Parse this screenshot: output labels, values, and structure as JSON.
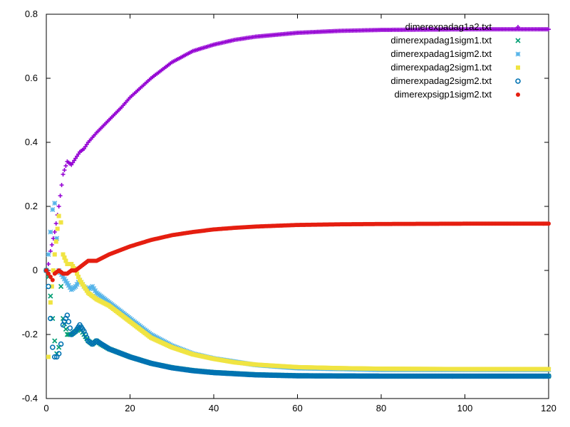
{
  "chart_data": {
    "type": "scatter",
    "title": "",
    "xlabel": "",
    "ylabel": "",
    "xlim": [
      0,
      120
    ],
    "ylim": [
      -0.4,
      0.8
    ],
    "xticks": [
      "0",
      "20",
      "40",
      "60",
      "80",
      "100",
      "120"
    ],
    "yticks": [
      "-0.4",
      "-0.2",
      "0",
      "0.2",
      "0.4",
      "0.6",
      "0.8"
    ],
    "grid": false,
    "legend_position": "top-right",
    "series": [
      {
        "name": "dimerexpadag1a2.txt",
        "marker": "plus",
        "color": "#9400d3",
        "points": [
          [
            0,
            0
          ],
          [
            0.5,
            0.02
          ],
          [
            1,
            0.06
          ],
          [
            2,
            0.12
          ],
          [
            3,
            0.2
          ],
          [
            4,
            0.3
          ],
          [
            5,
            0.34
          ],
          [
            6,
            0.33
          ],
          [
            7,
            0.35
          ],
          [
            8,
            0.37
          ],
          [
            9,
            0.38
          ],
          [
            10,
            0.4
          ],
          [
            12,
            0.43
          ],
          [
            15,
            0.47
          ],
          [
            18,
            0.51
          ],
          [
            20,
            0.54
          ],
          [
            25,
            0.6
          ],
          [
            30,
            0.65
          ],
          [
            35,
            0.685
          ],
          [
            40,
            0.705
          ],
          [
            45,
            0.72
          ],
          [
            50,
            0.73
          ],
          [
            60,
            0.742
          ],
          [
            70,
            0.748
          ],
          [
            80,
            0.751
          ],
          [
            90,
            0.752
          ],
          [
            100,
            0.753
          ],
          [
            110,
            0.753
          ],
          [
            120,
            0.753
          ]
        ]
      },
      {
        "name": "dimerexpadag1sigm1.txt",
        "marker": "cross",
        "color": "#009e73",
        "points": [
          [
            0,
            0
          ],
          [
            0.5,
            -0.02
          ],
          [
            1,
            -0.08
          ],
          [
            1.5,
            -0.15
          ],
          [
            2,
            -0.22
          ],
          [
            2.5,
            -0.26
          ],
          [
            3,
            -0.24
          ],
          [
            3.5,
            -0.05
          ],
          [
            4,
            -0.15
          ],
          [
            5,
            -0.2
          ],
          [
            6,
            -0.2
          ],
          [
            7,
            -0.19
          ],
          [
            8,
            -0.18
          ],
          [
            9,
            -0.2
          ],
          [
            10,
            -0.22
          ],
          [
            11,
            -0.23
          ],
          [
            12,
            -0.22
          ],
          [
            13,
            -0.23
          ],
          [
            15,
            -0.245
          ],
          [
            18,
            -0.26
          ],
          [
            20,
            -0.27
          ],
          [
            25,
            -0.29
          ],
          [
            30,
            -0.303
          ],
          [
            35,
            -0.312
          ],
          [
            40,
            -0.318
          ],
          [
            50,
            -0.325
          ],
          [
            60,
            -0.328
          ],
          [
            80,
            -0.33
          ],
          [
            100,
            -0.33
          ],
          [
            120,
            -0.33
          ]
        ]
      },
      {
        "name": "dimerexpadag1sigm2.txt",
        "marker": "star",
        "color": "#56b4e9",
        "points": [
          [
            0,
            0
          ],
          [
            0.5,
            0.05
          ],
          [
            1,
            0.12
          ],
          [
            1.5,
            0.19
          ],
          [
            2,
            0.21
          ],
          [
            2.5,
            0.1
          ],
          [
            3,
            0.0
          ],
          [
            4,
            -0.02
          ],
          [
            5,
            -0.04
          ],
          [
            6,
            -0.06
          ],
          [
            7,
            -0.05
          ],
          [
            8,
            -0.03
          ],
          [
            9,
            -0.05
          ],
          [
            10,
            -0.06
          ],
          [
            11,
            -0.05
          ],
          [
            12,
            -0.07
          ],
          [
            15,
            -0.1
          ],
          [
            18,
            -0.13
          ],
          [
            20,
            -0.15
          ],
          [
            25,
            -0.2
          ],
          [
            30,
            -0.235
          ],
          [
            35,
            -0.26
          ],
          [
            40,
            -0.275
          ],
          [
            50,
            -0.295
          ],
          [
            60,
            -0.305
          ],
          [
            80,
            -0.31
          ],
          [
            100,
            -0.31
          ],
          [
            120,
            -0.31
          ]
        ]
      },
      {
        "name": "dimerexpadag2sigm1.txt",
        "marker": "square",
        "color": "#f0e442",
        "points": [
          [
            0,
            0
          ],
          [
            0.5,
            -0.27
          ],
          [
            1,
            -0.1
          ],
          [
            2,
            0.05
          ],
          [
            3,
            0.17
          ],
          [
            3.5,
            0.15
          ],
          [
            4,
            0.05
          ],
          [
            5,
            0.02
          ],
          [
            6,
            0.02
          ],
          [
            7,
            0.0
          ],
          [
            8,
            -0.03
          ],
          [
            9,
            -0.05
          ],
          [
            10,
            -0.07
          ],
          [
            12,
            -0.09
          ],
          [
            15,
            -0.11
          ],
          [
            18,
            -0.14
          ],
          [
            20,
            -0.16
          ],
          [
            25,
            -0.21
          ],
          [
            30,
            -0.24
          ],
          [
            35,
            -0.262
          ],
          [
            40,
            -0.276
          ],
          [
            45,
            -0.287
          ],
          [
            50,
            -0.294
          ],
          [
            60,
            -0.302
          ],
          [
            70,
            -0.305
          ],
          [
            80,
            -0.307
          ],
          [
            100,
            -0.308
          ],
          [
            120,
            -0.308
          ]
        ]
      },
      {
        "name": "dimerexpadag2sigm2.txt",
        "marker": "circle",
        "color": "#0072b2",
        "points": [
          [
            0,
            0
          ],
          [
            0.5,
            -0.05
          ],
          [
            1,
            -0.15
          ],
          [
            1.5,
            -0.24
          ],
          [
            2,
            -0.27
          ],
          [
            2.5,
            -0.27
          ],
          [
            3,
            -0.26
          ],
          [
            3.5,
            -0.23
          ],
          [
            4,
            -0.17
          ],
          [
            5,
            -0.14
          ],
          [
            6,
            -0.2
          ],
          [
            7,
            -0.19
          ],
          [
            8,
            -0.17
          ],
          [
            9,
            -0.19
          ],
          [
            10,
            -0.22
          ],
          [
            11,
            -0.23
          ],
          [
            12,
            -0.22
          ],
          [
            15,
            -0.245
          ],
          [
            18,
            -0.26
          ],
          [
            20,
            -0.27
          ],
          [
            25,
            -0.29
          ],
          [
            30,
            -0.304
          ],
          [
            35,
            -0.313
          ],
          [
            40,
            -0.319
          ],
          [
            50,
            -0.326
          ],
          [
            60,
            -0.329
          ],
          [
            80,
            -0.33
          ],
          [
            100,
            -0.33
          ],
          [
            120,
            -0.33
          ]
        ]
      },
      {
        "name": "dimerexpsigp1sigm2.txt",
        "marker": "filled-circle",
        "color": "#e51e10",
        "points": [
          [
            0,
            0
          ],
          [
            0.5,
            -0.01
          ],
          [
            1,
            -0.02
          ],
          [
            1.5,
            -0.03
          ],
          [
            2,
            -0.01
          ],
          [
            3,
            0.0
          ],
          [
            4,
            -0.01
          ],
          [
            5,
            -0.01
          ],
          [
            6,
            0.0
          ],
          [
            7,
            0.0
          ],
          [
            8,
            0.01
          ],
          [
            9,
            0.02
          ],
          [
            10,
            0.03
          ],
          [
            12,
            0.03
          ],
          [
            15,
            0.05
          ],
          [
            18,
            0.065
          ],
          [
            20,
            0.075
          ],
          [
            25,
            0.095
          ],
          [
            30,
            0.11
          ],
          [
            35,
            0.12
          ],
          [
            40,
            0.128
          ],
          [
            45,
            0.133
          ],
          [
            50,
            0.137
          ],
          [
            60,
            0.142
          ],
          [
            70,
            0.144
          ],
          [
            80,
            0.145
          ],
          [
            100,
            0.146
          ],
          [
            120,
            0.146
          ]
        ]
      }
    ]
  }
}
